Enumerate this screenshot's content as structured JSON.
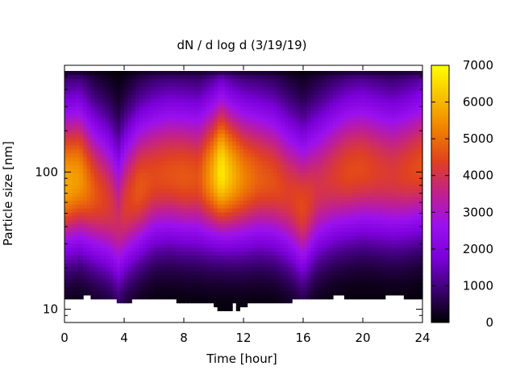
{
  "chart_data": {
    "type": "heatmap",
    "title": "dN / d log d (3/19/19)",
    "xlabel": "Time [hour]",
    "ylabel": "Particle size [nm]",
    "x_ticks": [
      "0",
      "4",
      "8",
      "12",
      "16",
      "20",
      "24"
    ],
    "xlim": [
      0,
      24
    ],
    "y_scale": "log",
    "ylim": [
      8,
      600
    ],
    "y_ticks": [
      {
        "value": 10,
        "label": "10"
      },
      {
        "value": 100,
        "label": "100"
      }
    ],
    "colorbar": {
      "range": [
        0,
        7000
      ],
      "ticks": [
        "0",
        "1000",
        "2000",
        "3000",
        "4000",
        "5000",
        "6000",
        "7000"
      ],
      "palette": [
        "#000000",
        "#3a0070",
        "#7a00d8",
        "#9a10f0",
        "#c0208f",
        "#e04020",
        "#f08000",
        "#f8c000",
        "#ffff00"
      ]
    },
    "grid": false,
    "peak_diameter_nm": [
      [
        0,
        82
      ],
      [
        1,
        88
      ],
      [
        2,
        70
      ],
      [
        3,
        58
      ],
      [
        3.6,
        45
      ],
      [
        4,
        55
      ],
      [
        5,
        75
      ],
      [
        6,
        90
      ],
      [
        7,
        95
      ],
      [
        8,
        92
      ],
      [
        9,
        90
      ],
      [
        10,
        95
      ],
      [
        10.5,
        100
      ],
      [
        11,
        95
      ],
      [
        12,
        90
      ],
      [
        13,
        90
      ],
      [
        14,
        85
      ],
      [
        15,
        70
      ],
      [
        16,
        55
      ],
      [
        17,
        75
      ],
      [
        18,
        90
      ],
      [
        19,
        100
      ],
      [
        20,
        105
      ],
      [
        21,
        100
      ],
      [
        22,
        95
      ],
      [
        23,
        100
      ],
      [
        24,
        110
      ]
    ],
    "peak_value": [
      [
        0,
        5800
      ],
      [
        1,
        5600
      ],
      [
        2,
        4700
      ],
      [
        3,
        4200
      ],
      [
        3.6,
        3800
      ],
      [
        4,
        4200
      ],
      [
        5,
        4700
      ],
      [
        6,
        4500
      ],
      [
        7,
        4600
      ],
      [
        8,
        4700
      ],
      [
        9,
        4600
      ],
      [
        10,
        5900
      ],
      [
        10.5,
        6800
      ],
      [
        11,
        6200
      ],
      [
        12,
        5300
      ],
      [
        13,
        4800
      ],
      [
        14,
        4600
      ],
      [
        15,
        4300
      ],
      [
        16,
        4500
      ],
      [
        17,
        4000
      ],
      [
        18,
        4200
      ],
      [
        19,
        4500
      ],
      [
        20,
        4500
      ],
      [
        21,
        4300
      ],
      [
        22,
        4200
      ],
      [
        23,
        4400
      ],
      [
        24,
        4600
      ]
    ],
    "min_size_nm": [
      [
        0,
        12
      ],
      [
        1.2,
        12
      ],
      [
        1.3,
        12.5
      ],
      [
        2.5,
        12
      ],
      [
        4,
        11.3
      ],
      [
        5.5,
        12
      ],
      [
        7.5,
        11.5
      ],
      [
        10,
        11
      ],
      [
        10.3,
        9.5
      ],
      [
        11.2,
        9.5
      ],
      [
        11.3,
        11.5
      ],
      [
        11.6,
        9.5
      ],
      [
        12.5,
        11.5
      ],
      [
        13,
        11
      ],
      [
        17.5,
        12
      ],
      [
        18.5,
        12.5
      ],
      [
        19,
        12
      ],
      [
        21.5,
        12
      ],
      [
        21.7,
        12.5
      ],
      [
        24,
        12
      ]
    ]
  }
}
